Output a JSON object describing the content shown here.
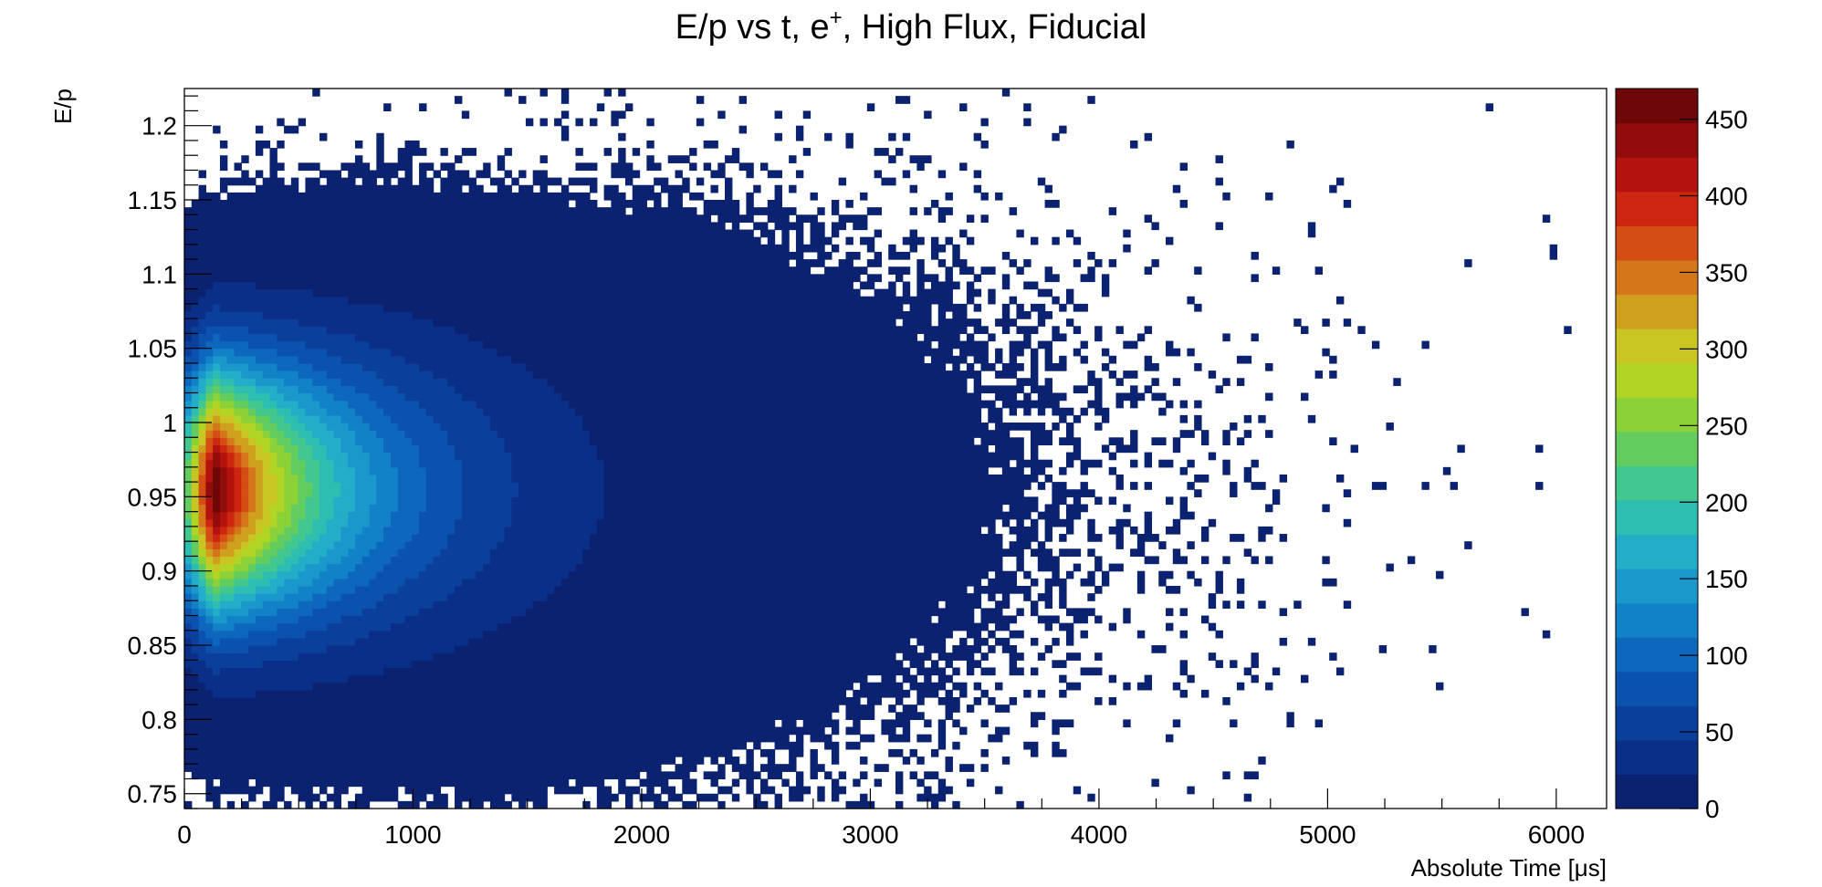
{
  "chart_data": {
    "type": "heatmap",
    "title_main": "E/p vs t, e",
    "title_sup": "+",
    "title_rest": ", High Flux, Fiducial",
    "xlabel": "Absolute Time [μs]",
    "ylabel": "E/p",
    "xlim": [
      0,
      6220
    ],
    "ylim": [
      0.74,
      1.225
    ],
    "x_major_ticks": [
      0,
      1000,
      2000,
      3000,
      4000,
      5000,
      6000
    ],
    "x_tick_labels": [
      "0",
      "1000",
      "2000",
      "3000",
      "4000",
      "5000",
      "6000"
    ],
    "y_major_ticks": [
      0.75,
      0.8,
      0.85,
      0.9,
      0.95,
      1,
      1.05,
      1.1,
      1.15,
      1.2
    ],
    "y_tick_labels": [
      "0.75",
      "0.8",
      "0.85",
      "0.9",
      "0.95",
      "1",
      "1.05",
      "1.1",
      "1.15",
      "1.2"
    ],
    "z_range": [
      0,
      470
    ],
    "z_ticks": [
      0,
      50,
      100,
      150,
      200,
      250,
      300,
      350,
      400,
      450
    ],
    "z_tick_labels": [
      "0",
      "50",
      "100",
      "150",
      "200",
      "250",
      "300",
      "350",
      "400",
      "450"
    ],
    "binning": {
      "x_bins": 200,
      "y_bins": 97
    },
    "distribution": {
      "peak_x": 130,
      "peak_y": 0.955,
      "peak_count": 470,
      "y_sigma_at_t0": 0.055,
      "y_sigma_growth_per_us": 1.25e-05,
      "x_decay_constant_us": 560,
      "dense_region_x_end": 3100
    },
    "palette": [
      "#0b2271",
      "#0a2f88",
      "#0a3f9c",
      "#0a52ad",
      "#0c67bd",
      "#1282c8",
      "#1a98cc",
      "#22adc8",
      "#2dbeb2",
      "#42c78f",
      "#63cc5f",
      "#8bd238",
      "#b2d424",
      "#c9c522",
      "#cf9f1e",
      "#d6761a",
      "#d44d14",
      "#cc2610",
      "#b3120e",
      "#920c0c",
      "#6e0707"
    ],
    "colors": {
      "low_count": "#0b2271",
      "high_count": "#6e0707",
      "empty": "#ffffff"
    }
  }
}
